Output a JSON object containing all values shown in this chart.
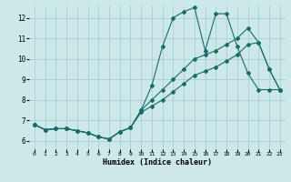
{
  "xlabel": "Humidex (Indice chaleur)",
  "bg_color": "#cce8e8",
  "grid_color": "#aacece",
  "line_color": "#1a6b6b",
  "xlim": [
    -0.5,
    23.5
  ],
  "ylim": [
    5.6,
    12.6
  ],
  "xticks": [
    0,
    1,
    2,
    3,
    4,
    5,
    6,
    7,
    8,
    9,
    10,
    11,
    12,
    13,
    14,
    15,
    16,
    17,
    18,
    19,
    20,
    21,
    22,
    23
  ],
  "yticks": [
    6,
    7,
    8,
    9,
    10,
    11,
    12
  ],
  "line1_x": [
    0,
    1,
    2,
    3,
    4,
    5,
    6,
    7,
    8,
    9,
    10,
    11,
    12,
    13,
    14,
    15,
    16,
    17,
    18,
    19,
    20,
    21,
    22,
    23
  ],
  "line1_y": [
    6.8,
    6.55,
    6.6,
    6.6,
    6.5,
    6.4,
    6.2,
    6.1,
    6.45,
    6.65,
    7.5,
    8.0,
    8.5,
    9.0,
    9.5,
    10.0,
    10.2,
    10.4,
    10.7,
    11.0,
    11.5,
    10.8,
    9.5,
    8.5
  ],
  "line2_x": [
    0,
    1,
    2,
    3,
    4,
    5,
    6,
    7,
    8,
    9,
    10,
    11,
    12,
    13,
    14,
    15,
    16,
    17,
    18,
    19,
    20,
    21,
    22,
    23
  ],
  "line2_y": [
    6.8,
    6.55,
    6.6,
    6.6,
    6.5,
    6.4,
    6.2,
    6.1,
    6.45,
    6.65,
    7.5,
    8.7,
    10.6,
    12.0,
    12.3,
    12.5,
    10.4,
    12.2,
    12.2,
    10.6,
    9.3,
    8.5,
    8.5,
    8.5
  ],
  "line3_x": [
    0,
    1,
    2,
    3,
    4,
    5,
    6,
    7,
    8,
    9,
    10,
    11,
    12,
    13,
    14,
    15,
    16,
    17,
    18,
    19,
    20,
    21,
    22,
    23
  ],
  "line3_y": [
    6.8,
    6.55,
    6.6,
    6.6,
    6.5,
    6.4,
    6.2,
    6.1,
    6.45,
    6.65,
    7.4,
    7.7,
    8.0,
    8.4,
    8.8,
    9.2,
    9.4,
    9.6,
    9.9,
    10.2,
    10.7,
    10.8,
    9.5,
    8.5
  ]
}
